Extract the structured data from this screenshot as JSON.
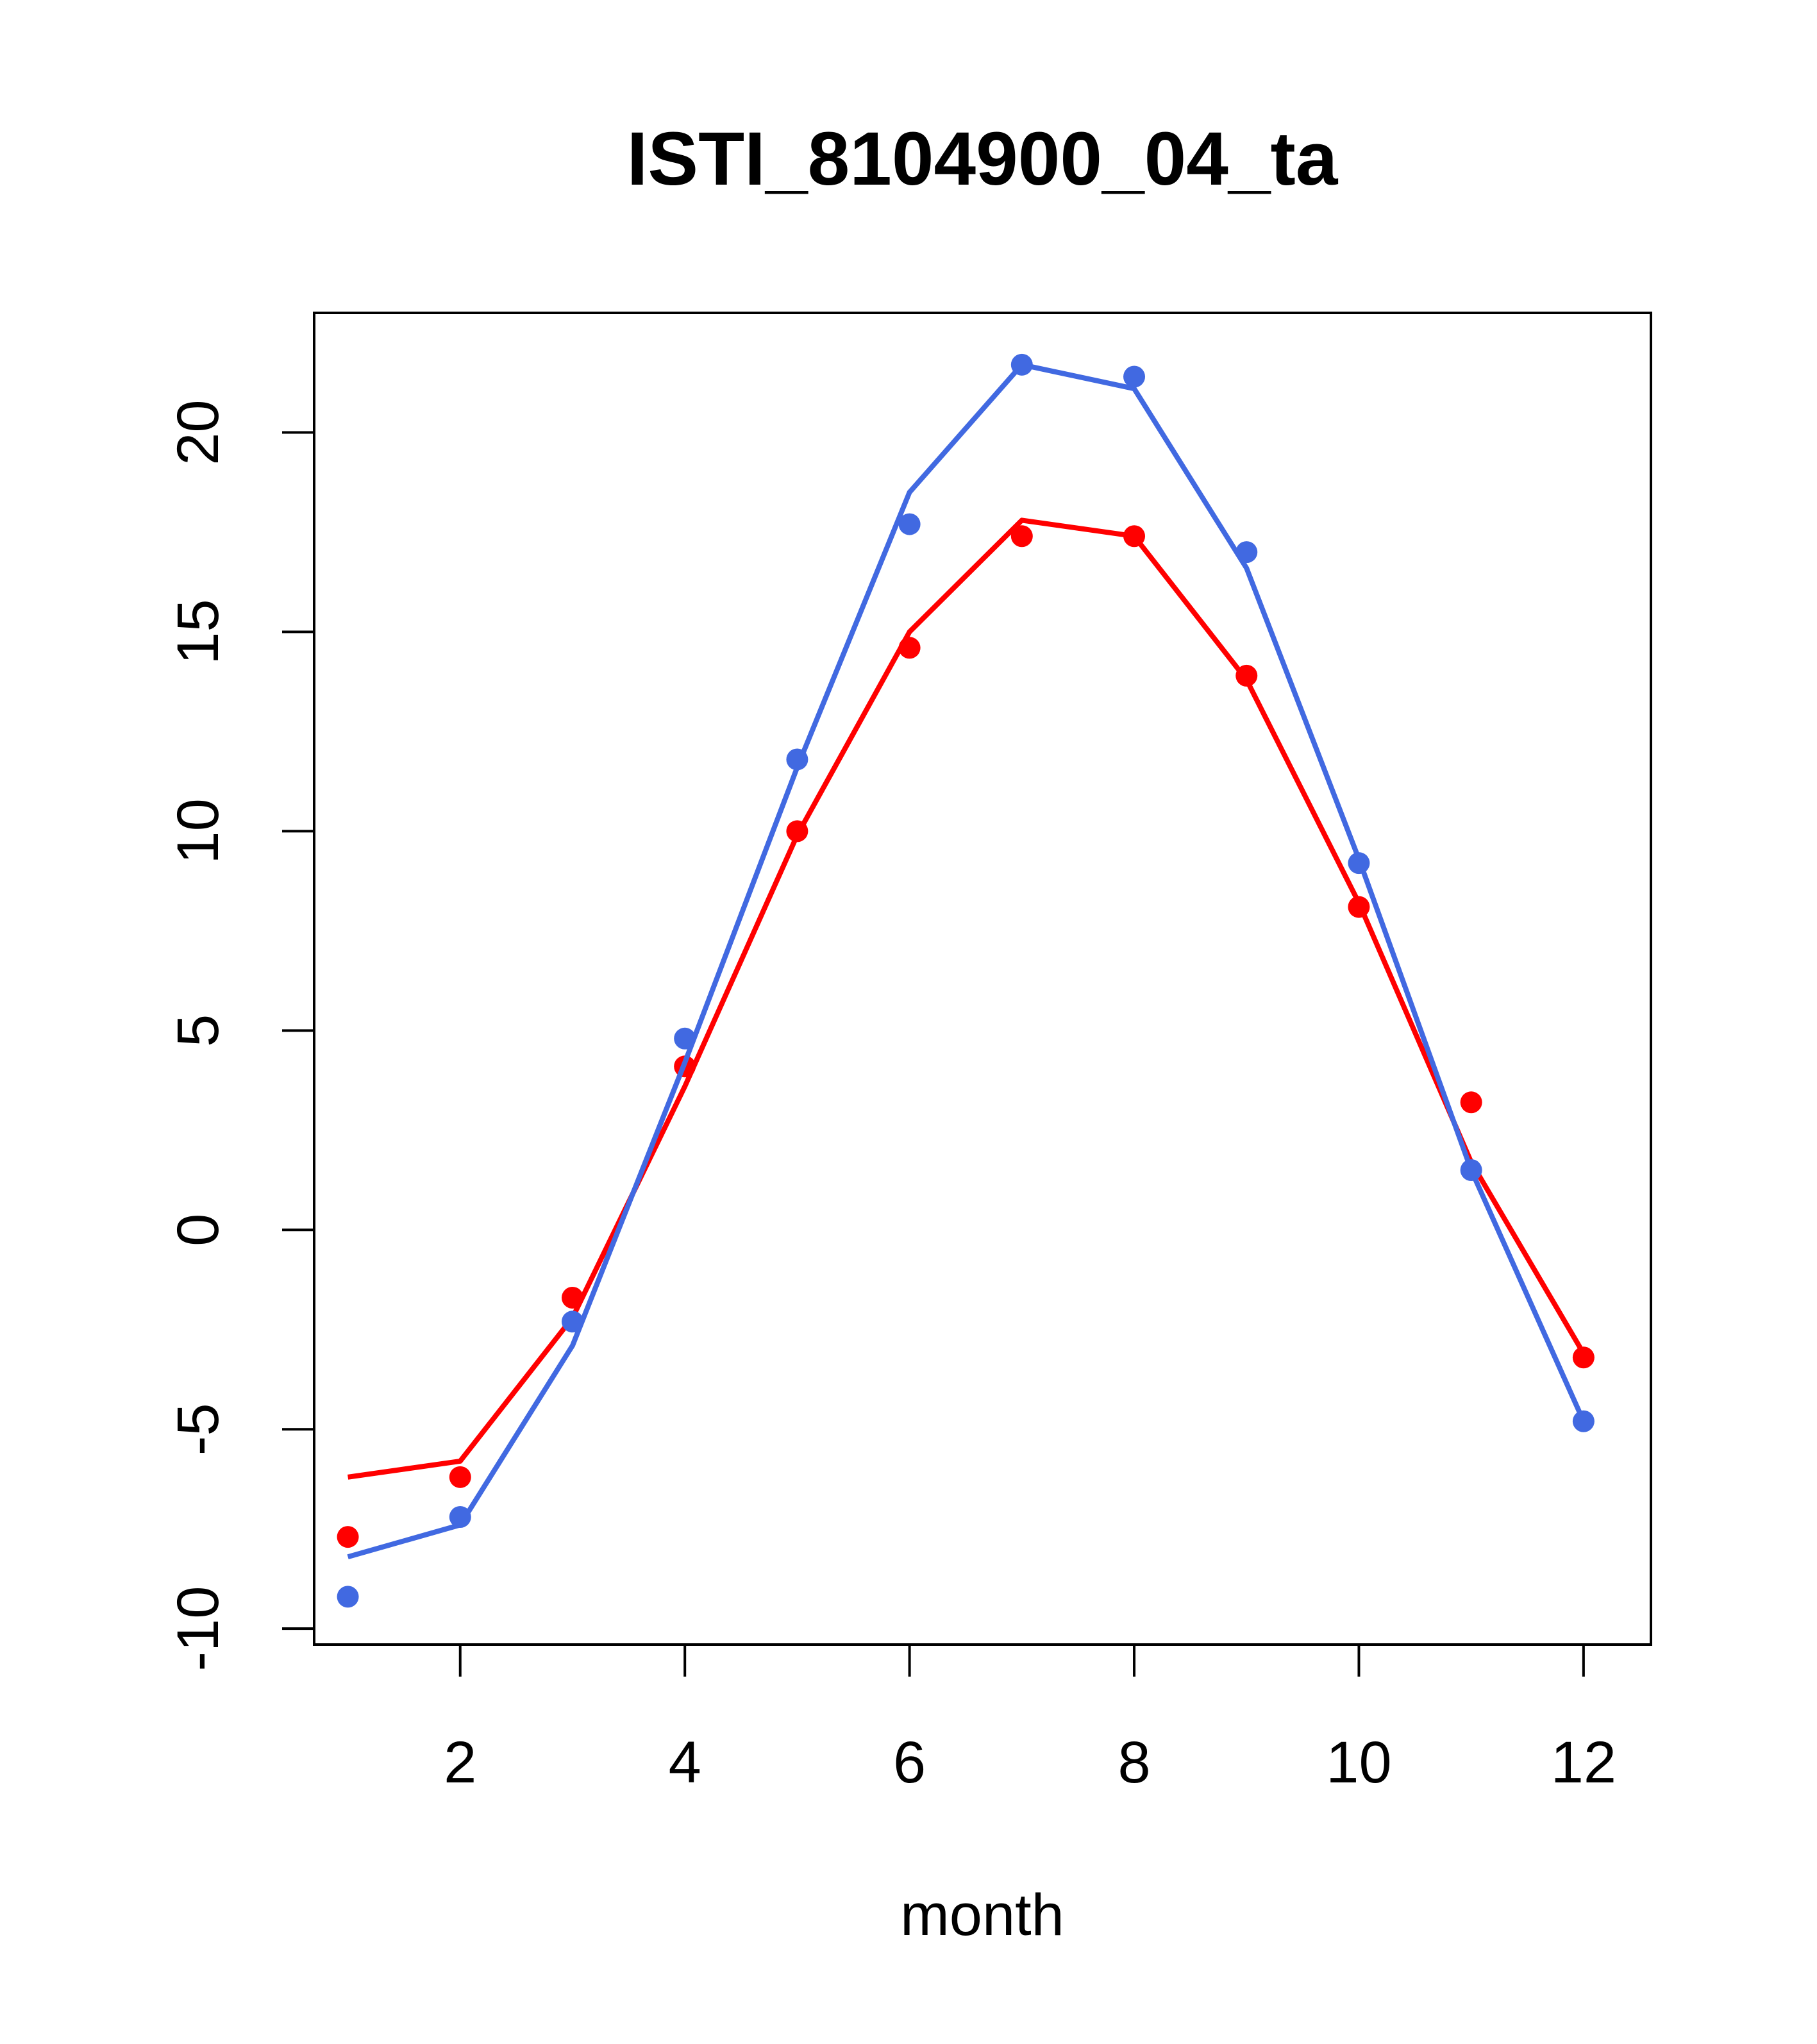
{
  "chart_data": {
    "type": "line",
    "title": "ISTI_8104900_04_ta",
    "xlabel": "month",
    "ylabel": "",
    "xlim": [
      0.7,
      12.6
    ],
    "ylim": [
      -10.4,
      23.0
    ],
    "x_ticks": [
      2,
      4,
      6,
      8,
      10,
      12
    ],
    "y_ticks": [
      -10,
      -5,
      0,
      5,
      10,
      15,
      20
    ],
    "x_tick_labels": [
      "2",
      "4",
      "6",
      "8",
      "10",
      "12"
    ],
    "y_tick_labels": [
      "-10",
      "-5",
      "0",
      "5",
      "10",
      "15",
      "20"
    ],
    "grid": false,
    "legend": "none",
    "x": [
      1,
      2,
      3,
      4,
      5,
      6,
      7,
      8,
      9,
      10,
      11,
      12
    ],
    "series": [
      {
        "color": "#ff0000",
        "points": [
          -7.7,
          -6.2,
          -1.7,
          4.1,
          10.0,
          14.6,
          17.4,
          17.4,
          13.9,
          8.1,
          3.2,
          -3.2
        ],
        "line": [
          -6.2,
          -5.8,
          -2.2,
          3.6,
          9.9,
          15.0,
          17.8,
          17.4,
          13.8,
          8.2,
          1.7,
          -3.1
        ]
      },
      {
        "color": "#4169e1",
        "points": [
          -9.2,
          -7.2,
          -2.3,
          4.8,
          11.8,
          17.7,
          21.7,
          21.4,
          17.0,
          9.2,
          1.5,
          -4.8
        ],
        "line": [
          -8.2,
          -7.4,
          -2.9,
          4.2,
          11.6,
          18.5,
          21.7,
          21.1,
          16.6,
          9.3,
          1.5,
          -4.8
        ]
      }
    ]
  }
}
